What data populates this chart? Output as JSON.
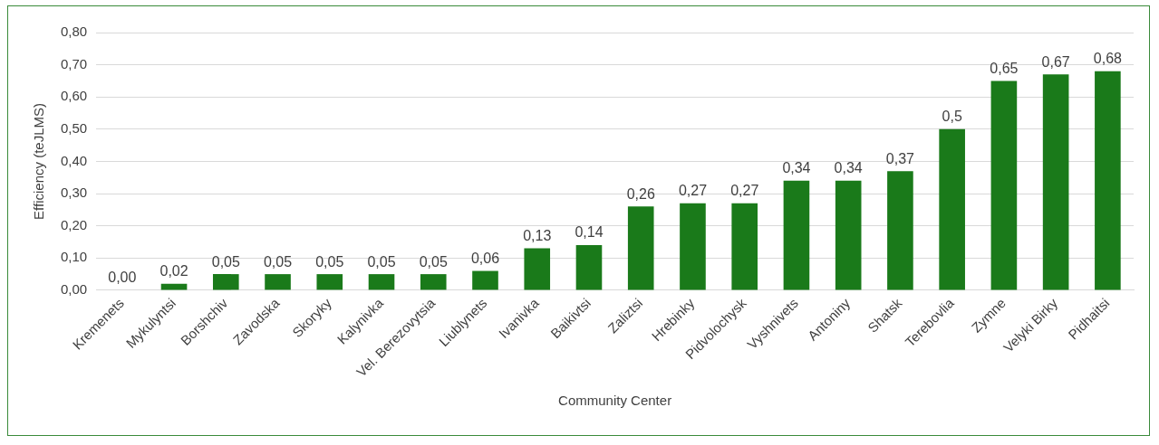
{
  "chart_data": {
    "type": "bar",
    "xlabel": "Community Center",
    "ylabel": "Efficiency (teJLMS)",
    "categories": [
      "Kremenets",
      "Mykulyntsi",
      "Borshchiv",
      "Zavodska",
      "Skoryky",
      "Kalynivka",
      "Vel. Berezovytsia",
      "Liublynets",
      "Ivanivka",
      "Baikivtsi",
      "Zaliztsi",
      "Hrebinky",
      "Pidvolochysk",
      "Vyshnivets",
      "Antoniny",
      "Shatsk",
      "Terebovlia",
      "Zymne",
      "Velyki Birky",
      "Pidhaitsi"
    ],
    "values": [
      0.0,
      0.02,
      0.05,
      0.05,
      0.05,
      0.05,
      0.05,
      0.06,
      0.13,
      0.14,
      0.26,
      0.27,
      0.27,
      0.34,
      0.34,
      0.37,
      0.5,
      0.65,
      0.67,
      0.68
    ],
    "value_labels": [
      "0,00",
      "0,02",
      "0,05",
      "0,05",
      "0,05",
      "0,05",
      "0,05",
      "0,06",
      "0,13",
      "0,14",
      "0,26",
      "0,27",
      "0,27",
      "0,34",
      "0,34",
      "0,37",
      "0,5",
      "0,65",
      "0,67",
      "0,68"
    ],
    "color": "#1a7a1a",
    "ylim": [
      0,
      0.8
    ],
    "yticks": [
      {
        "value": 0,
        "label": "0,00"
      },
      {
        "value": 0.1,
        "label": "0,10"
      },
      {
        "value": 0.2,
        "label": "0,20"
      },
      {
        "value": 0.3,
        "label": "0,30"
      },
      {
        "value": 0.4,
        "label": "0,40"
      },
      {
        "value": 0.5,
        "label": "0,50"
      },
      {
        "value": 0.6,
        "label": "0,60"
      },
      {
        "value": 0.7,
        "label": "0,70"
      },
      {
        "value": 0.8,
        "label": "0,80"
      }
    ],
    "grid": "y",
    "legend": false
  }
}
